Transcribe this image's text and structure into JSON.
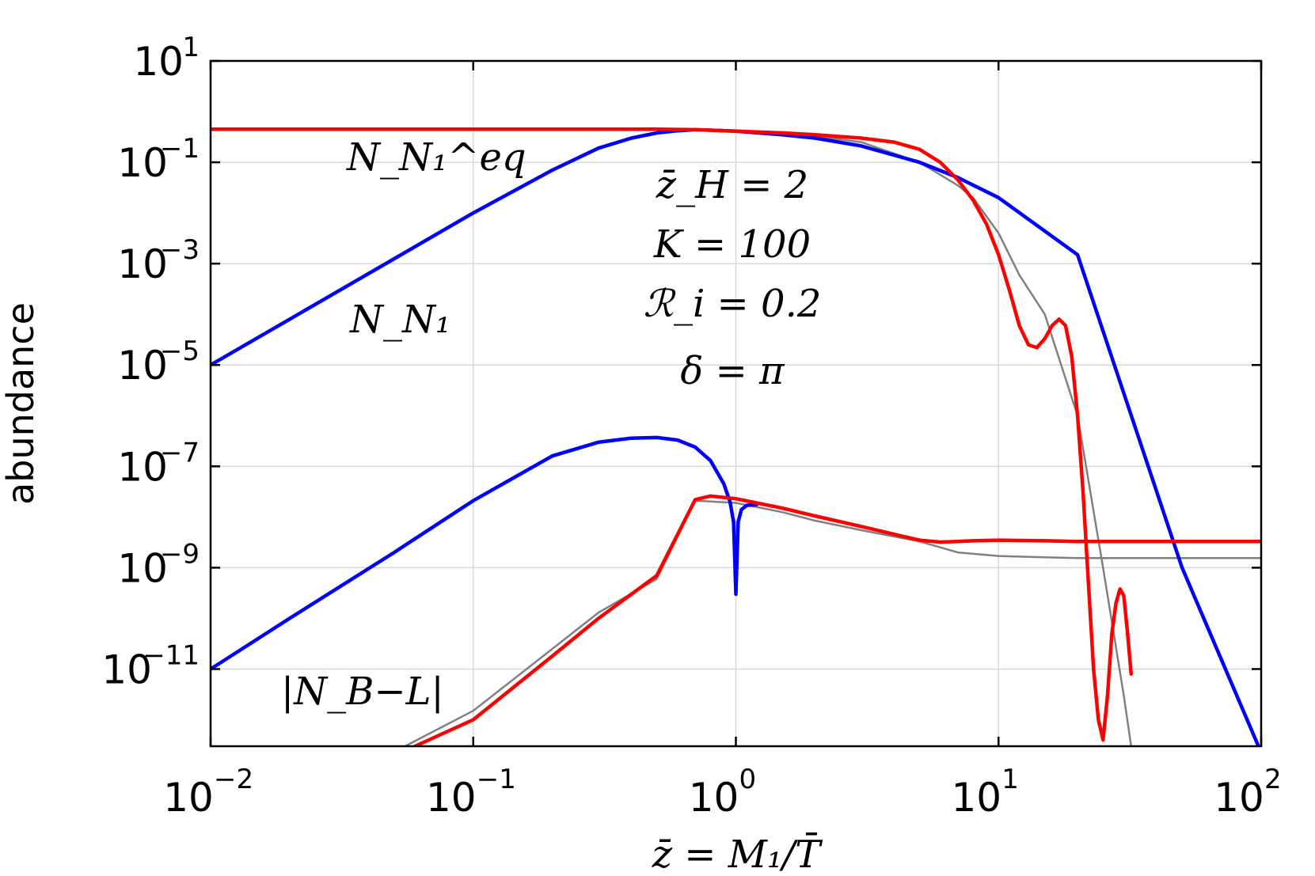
{
  "chart_data": {
    "type": "line",
    "xlabel": "z̄ = M₁/T̄",
    "ylabel": "abundance",
    "xscale": "log",
    "yscale": "log",
    "xlim": [
      0.01,
      100
    ],
    "ylim": [
      3e-13,
      10
    ],
    "grid": true,
    "legend": "none",
    "x_ticks": [
      {
        "base": "10",
        "exp": "−2"
      },
      {
        "base": "10",
        "exp": "−1"
      },
      {
        "base": "10",
        "exp": "0"
      },
      {
        "base": "10",
        "exp": "1"
      },
      {
        "base": "10",
        "exp": "2"
      }
    ],
    "y_ticks": [
      {
        "base": "10",
        "exp": "1"
      },
      {
        "base": "10",
        "exp": "−1"
      },
      {
        "base": "10",
        "exp": "−3"
      },
      {
        "base": "10",
        "exp": "−5"
      },
      {
        "base": "10",
        "exp": "−7"
      },
      {
        "base": "10",
        "exp": "−9"
      },
      {
        "base": "10",
        "exp": "−11"
      }
    ],
    "annotations": {
      "params": [
        "z̄_H = 2",
        "K = 100",
        "ℛ_i = 0.2",
        "δ = π"
      ],
      "n_eq": "N_N₁^eq",
      "n_n1": "N_N₁",
      "nbl": "|N_B−L|"
    },
    "series": [
      {
        "color": "#0000ff",
        "x": [
          0.01,
          0.02,
          0.05,
          0.1,
          0.2,
          0.3,
          0.4,
          0.5,
          0.6,
          0.7,
          0.8,
          1,
          1.5,
          2,
          3,
          5,
          7,
          10,
          20,
          50,
          100
        ],
        "y": [
          1e-05,
          8e-05,
          0.00125,
          0.01,
          0.07,
          0.19,
          0.3,
          0.38,
          0.42,
          0.44,
          0.43,
          0.41,
          0.35,
          0.3,
          0.21,
          0.1,
          0.05,
          0.02,
          0.0015,
          1e-09,
          1e-20
        ]
      },
      {
        "color": "#ff0000",
        "x": [
          0.01,
          0.1,
          0.3,
          0.5,
          0.7,
          1,
          1.5,
          2,
          3,
          4,
          5,
          6,
          7,
          8,
          9,
          10,
          11,
          12,
          13,
          14,
          15,
          16,
          17,
          18,
          19,
          20,
          21,
          22,
          23,
          24,
          25,
          26,
          27,
          28,
          29,
          30,
          31,
          32
        ],
        "y": [
          0.45,
          0.45,
          0.45,
          0.45,
          0.44,
          0.41,
          0.38,
          0.35,
          0.3,
          0.25,
          0.18,
          0.1,
          0.045,
          0.018,
          0.006,
          0.0015,
          0.0003,
          6e-05,
          2.5e-05,
          2.2e-05,
          3.3e-05,
          6e-05,
          8e-05,
          6e-05,
          1.5e-05,
          1e-06,
          3e-08,
          5e-10,
          1e-11,
          1e-12,
          4e-13,
          3e-12,
          5e-11,
          2e-10,
          3.8e-10,
          2.8e-10,
          5e-11,
          8e-12
        ]
      },
      {
        "color": "#808080",
        "x": [
          0.01,
          0.1,
          0.5,
          1,
          2,
          3,
          5,
          7,
          8,
          10,
          12,
          15,
          20,
          25,
          30,
          32
        ],
        "y": [
          0.45,
          0.45,
          0.44,
          0.41,
          0.33,
          0.25,
          0.1,
          0.035,
          0.02,
          0.004,
          0.0006,
          0.0001,
          1e-06,
          1e-09,
          3e-12,
          3e-13
        ]
      },
      {
        "color": "#0000ff",
        "x": [
          0.01,
          0.02,
          0.05,
          0.1,
          0.2,
          0.3,
          0.4,
          0.5,
          0.6,
          0.7,
          0.8,
          0.9,
          0.95,
          0.98,
          1.0,
          1.02,
          1.05,
          1.1,
          1.2
        ],
        "y": [
          1e-11,
          1e-10,
          2e-09,
          2.1e-08,
          1.6e-07,
          3e-07,
          3.6e-07,
          3.7e-07,
          3.3e-07,
          2.4e-07,
          1.3e-07,
          4.5e-08,
          2e-08,
          8e-09,
          3e-10,
          8e-09,
          1.4e-08,
          1.7e-08,
          1.75e-08
        ]
      },
      {
        "color": "#ff0000",
        "x": [
          0.06,
          0.1,
          0.2,
          0.3,
          0.5,
          0.7,
          0.8,
          1,
          1.5,
          2,
          3,
          5,
          6,
          7,
          8,
          10,
          15,
          20,
          30,
          50,
          100
        ],
        "y": [
          3e-13,
          1e-12,
          1.8e-11,
          1e-10,
          7e-10,
          2.2e-08,
          2.6e-08,
          2.3e-08,
          1.5e-08,
          1.05e-08,
          6.5e-09,
          3.5e-09,
          3.2e-09,
          3.3e-09,
          3.4e-09,
          3.5e-09,
          3.4e-09,
          3.3e-09,
          3.3e-09,
          3.3e-09,
          3.3e-09
        ]
      },
      {
        "color": "#808080",
        "x": [
          0.055,
          0.1,
          0.2,
          0.3,
          0.5,
          0.7,
          1,
          1.5,
          2,
          3,
          5,
          7,
          10,
          15,
          20,
          50,
          100
        ],
        "y": [
          3e-13,
          1.5e-12,
          2.5e-11,
          1.3e-10,
          6e-10,
          2.1e-08,
          1.9e-08,
          1.25e-08,
          8.5e-09,
          5.5e-09,
          3.3e-09,
          2e-09,
          1.7e-09,
          1.6e-09,
          1.55e-09,
          1.55e-09,
          1.55e-09
        ]
      }
    ]
  }
}
